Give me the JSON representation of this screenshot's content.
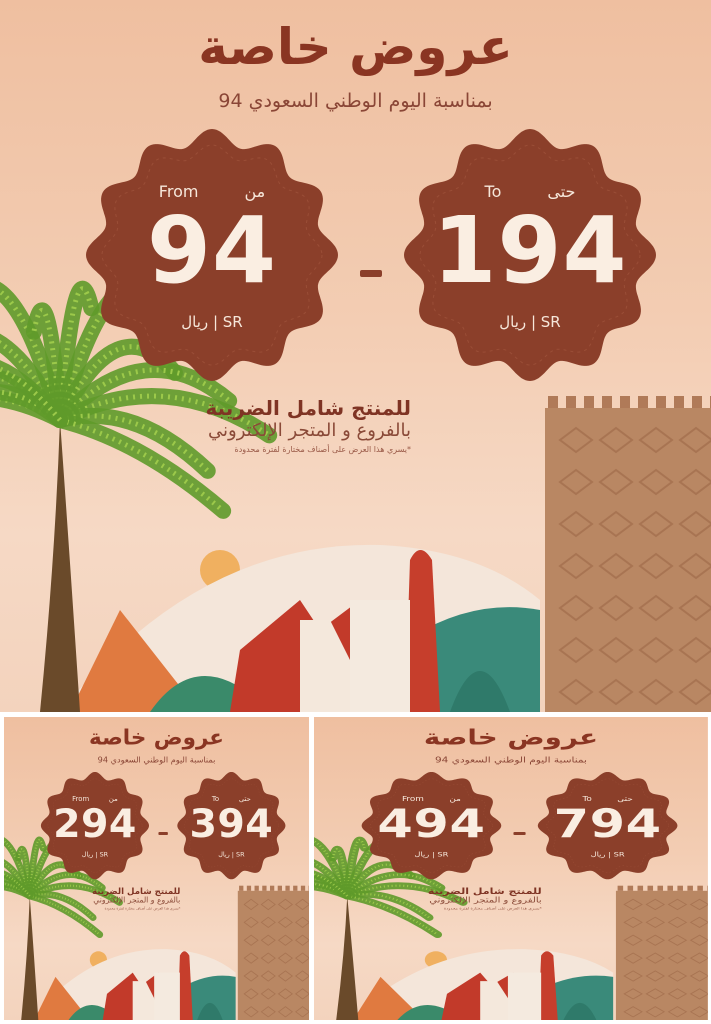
{
  "colors": {
    "brand": "#8b3f2a",
    "background": "#f3cdb3",
    "number": "#faeee2"
  },
  "panels": [
    {
      "title": "عروض خاصة",
      "subtitle": "بمناسبة اليوم الوطني السعودي 94",
      "from": {
        "label_en": "From",
        "label_ar": "من",
        "value": "94",
        "currency": "ريال | SR"
      },
      "to": {
        "label_en": "To",
        "label_ar": "حتى",
        "value": "194",
        "currency": "ريال | SR"
      },
      "dash": "-",
      "tax_line1": "للمنتج شامل الضريبة",
      "tax_line2": "بالفروع و المتجر الإلكتروني",
      "note": "*يسري هذا العرض على أصناف مختارة لفترة محدودة"
    },
    {
      "title": "عروض خاصة",
      "subtitle": "بمناسبة اليوم الوطني السعودي 94",
      "from": {
        "label_en": "From",
        "label_ar": "من",
        "value": "294",
        "currency": "ريال | SR"
      },
      "to": {
        "label_en": "To",
        "label_ar": "حتى",
        "value": "394",
        "currency": "ريال | SR"
      },
      "dash": "-",
      "tax_line1": "للمنتج شامل الضريبة",
      "tax_line2": "بالفروع و المتجر الإلكتروني",
      "note": "*يسري هذا العرض على أصناف مختارة لفترة محدودة"
    },
    {
      "title": "عروض خاصة",
      "subtitle": "بمناسبة اليوم الوطني السعودي 94",
      "from": {
        "label_en": "From",
        "label_ar": "من",
        "value": "494",
        "currency": "ريال | SR"
      },
      "to": {
        "label_en": "To",
        "label_ar": "حتى",
        "value": "794",
        "currency": "ريال | SR"
      },
      "dash": "-",
      "tax_line1": "للمنتج شامل الضريبة",
      "tax_line2": "بالفروع و المتجر الإلكتروني",
      "note": "*يسري هذا العرض على أصناف مختارة لفترة محدودة"
    }
  ]
}
